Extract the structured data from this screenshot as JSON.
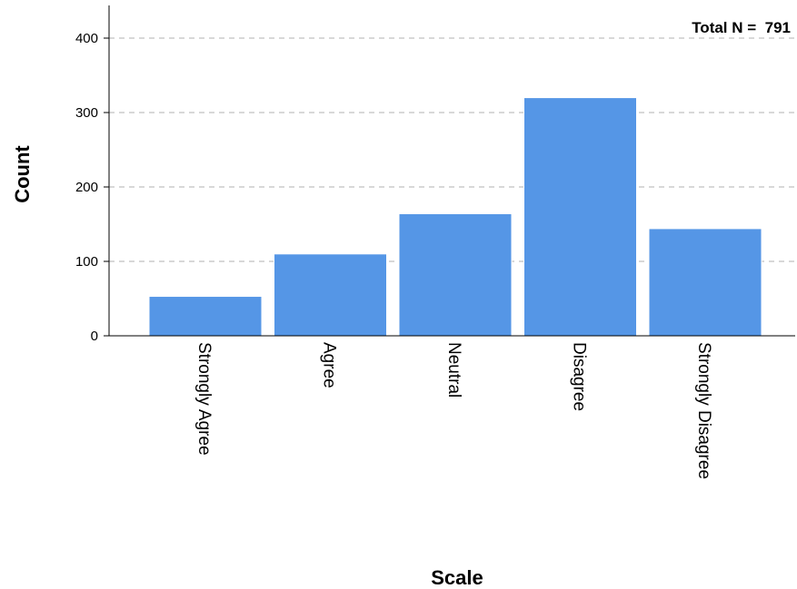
{
  "colors": {
    "bar": "#5596e6",
    "bar_edge": "#ffffff",
    "grid": "#c0c0c0",
    "axis": "#000000",
    "text": "#000000"
  },
  "chart_data": {
    "type": "bar",
    "categories": [
      "Strongly Agree",
      "Agree",
      "Neutral",
      "Disagree",
      "Strongly Disagree"
    ],
    "values": [
      53,
      110,
      164,
      320,
      144
    ],
    "xlabel": "Scale",
    "ylabel": "Count",
    "ylim": [
      0,
      400
    ],
    "yticks": [
      0,
      100,
      200,
      300,
      400
    ],
    "ytick_labels": [
      "0",
      "100",
      "200",
      "300",
      "400"
    ],
    "grid": "horizontal-dashed",
    "annotation": "Total N =  791"
  }
}
